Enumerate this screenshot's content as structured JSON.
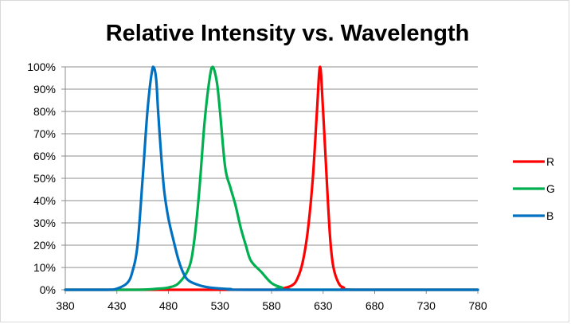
{
  "chart_data": {
    "type": "line",
    "title": "Relative Intensity vs. Wavelength",
    "xlabel": "",
    "ylabel": "",
    "xlim": [
      380,
      780
    ],
    "ylim": [
      0,
      100
    ],
    "x_ticks": [
      "380",
      "430",
      "480",
      "530",
      "580",
      "630",
      "680",
      "730",
      "780"
    ],
    "y_ticks": [
      "0%",
      "10%",
      "20%",
      "30%",
      "40%",
      "50%",
      "60%",
      "70%",
      "80%",
      "90%",
      "100%"
    ],
    "grid": true,
    "legend_position": "right",
    "series": [
      {
        "name": "R",
        "color": "#ff0000",
        "points": [
          [
            380,
            0
          ],
          [
            580,
            0
          ],
          [
            590,
            0.5
          ],
          [
            600,
            2
          ],
          [
            605,
            5
          ],
          [
            610,
            12
          ],
          [
            615,
            26
          ],
          [
            620,
            50
          ],
          [
            624,
            80
          ],
          [
            627,
            100
          ],
          [
            630,
            80
          ],
          [
            634,
            45
          ],
          [
            637,
            22
          ],
          [
            640,
            10
          ],
          [
            645,
            3
          ],
          [
            650,
            1
          ],
          [
            660,
            0
          ],
          [
            780,
            0
          ]
        ]
      },
      {
        "name": "G",
        "color": "#00b050",
        "points": [
          [
            380,
            0
          ],
          [
            450,
            0
          ],
          [
            470,
            0.5
          ],
          [
            480,
            1
          ],
          [
            490,
            3
          ],
          [
            500,
            10
          ],
          [
            505,
            22
          ],
          [
            510,
            45
          ],
          [
            515,
            75
          ],
          [
            520,
            95
          ],
          [
            523,
            100
          ],
          [
            527,
            93
          ],
          [
            530,
            80
          ],
          [
            535,
            55
          ],
          [
            540,
            46
          ],
          [
            545,
            38
          ],
          [
            550,
            28
          ],
          [
            555,
            20
          ],
          [
            560,
            13
          ],
          [
            570,
            8
          ],
          [
            580,
            3
          ],
          [
            590,
            1
          ],
          [
            600,
            0
          ],
          [
            780,
            0
          ]
        ]
      },
      {
        "name": "B",
        "color": "#0070c0",
        "points": [
          [
            380,
            0
          ],
          [
            420,
            0
          ],
          [
            430,
            0.5
          ],
          [
            440,
            3
          ],
          [
            445,
            8
          ],
          [
            450,
            20
          ],
          [
            455,
            50
          ],
          [
            460,
            82
          ],
          [
            465,
            100
          ],
          [
            468,
            95
          ],
          [
            470,
            80
          ],
          [
            473,
            60
          ],
          [
            476,
            44
          ],
          [
            480,
            32
          ],
          [
            485,
            22
          ],
          [
            490,
            13
          ],
          [
            495,
            7
          ],
          [
            500,
            4
          ],
          [
            510,
            2
          ],
          [
            520,
            1
          ],
          [
            540,
            0.3
          ],
          [
            560,
            0
          ],
          [
            780,
            0
          ]
        ]
      }
    ]
  }
}
